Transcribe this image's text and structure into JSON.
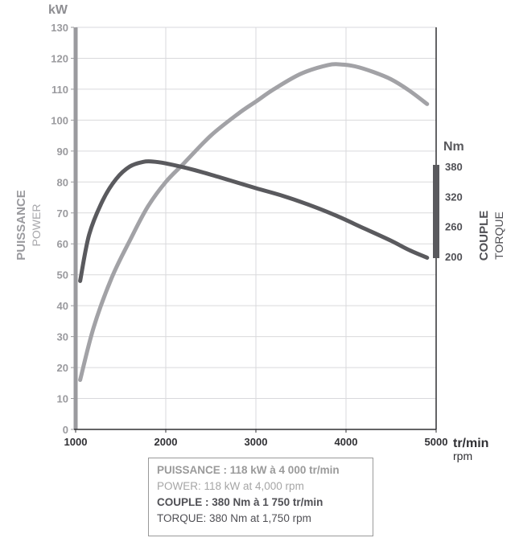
{
  "chart_data": {
    "type": "line",
    "x_unit": {
      "primary": "tr/min",
      "secondary": "rpm"
    },
    "xlim": [
      1000,
      5000
    ],
    "x_ticks": [
      "1000",
      "2000",
      "3000",
      "4000",
      "5000"
    ],
    "left_axis": {
      "unit": "kW",
      "label_primary": "PUISSANCE",
      "label_secondary": "POWER",
      "ylim": [
        0,
        130
      ],
      "ticks": [
        "0",
        "10",
        "20",
        "30",
        "40",
        "50",
        "60",
        "70",
        "80",
        "90",
        "100",
        "110",
        "120",
        "130"
      ]
    },
    "right_axis": {
      "unit": "Nm",
      "label_primary": "COUPLE",
      "label_secondary": "TORQUE",
      "ticks": [
        "200",
        "260",
        "320",
        "380"
      ]
    },
    "series": [
      {
        "name": "POWER",
        "axis": "left",
        "color": "#a2a2a6",
        "x": [
          1050,
          1200,
          1400,
          1600,
          1800,
          2000,
          2200,
          2500,
          2800,
          3000,
          3200,
          3500,
          3800,
          3950,
          4100,
          4300,
          4500,
          4700,
          4900
        ],
        "y": [
          16,
          33,
          49,
          61,
          72,
          80,
          86,
          95,
          102,
          106,
          110,
          115,
          117.8,
          118,
          117.4,
          115.6,
          113.2,
          109.6,
          105.2
        ]
      },
      {
        "name": "TORQUE",
        "axis": "left",
        "color": "#5a5a5e",
        "x": [
          1050,
          1150,
          1300,
          1450,
          1600,
          1750,
          1850,
          2000,
          2300,
          2600,
          3000,
          3300,
          3600,
          3900,
          4200,
          4500,
          4700,
          4900
        ],
        "y": [
          48,
          63,
          74,
          81,
          85,
          86.5,
          86.6,
          86,
          84,
          81.5,
          78,
          75.5,
          72.5,
          69,
          65,
          61,
          58,
          55.5
        ]
      }
    ],
    "grid": true
  },
  "info_box": {
    "line1": "PUISSANCE : 118 kW à 4 000 tr/min",
    "line2": "POWER: 118 kW at 4,000 rpm",
    "line3": "COUPLE : 380 Nm à 1 750 tr/min",
    "line4": "TORQUE: 380 Nm at 1,750 rpm"
  }
}
